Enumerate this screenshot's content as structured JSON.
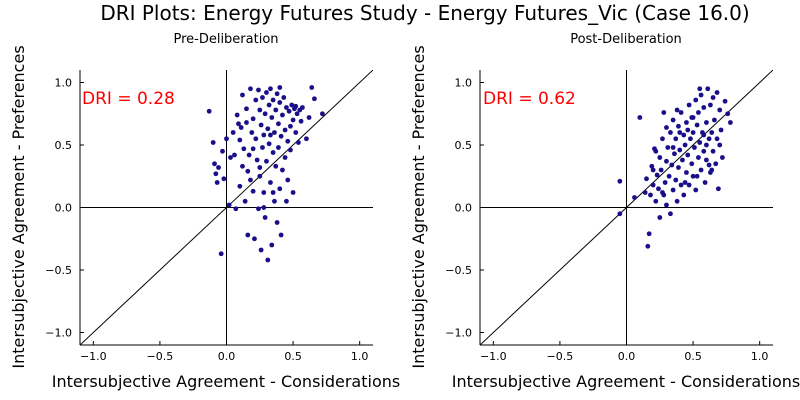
{
  "figure": {
    "title": "DRI Plots: Energy Futures Study - Energy Futures_Vic (Case 16.0)"
  },
  "colors": {
    "point": "#1a0f8a",
    "annotation": "#ff0000",
    "axis": "#000000"
  },
  "chart_data": [
    {
      "type": "scatter",
      "title": "Pre-Deliberation",
      "xlabel": "Intersubjective Agreement - Considerations",
      "ylabel": "Intersubjective Agreement - Preferences",
      "xlim": [
        -1.1,
        1.1
      ],
      "ylim": [
        -1.1,
        1.1
      ],
      "xticks": [
        "−1.0",
        "−0.5",
        "0.0",
        "0.5",
        "1.0"
      ],
      "yticks": [
        "−1.0",
        "−0.5",
        "0.0",
        "0.5",
        "1.0"
      ],
      "grid": false,
      "reference_lines": [
        "x=0",
        "y=0",
        "y=x"
      ],
      "annotation": "DRI = 0.28",
      "points": [
        [
          -0.13,
          0.77
        ],
        [
          -0.1,
          0.52
        ],
        [
          -0.09,
          0.35
        ],
        [
          -0.08,
          0.27
        ],
        [
          -0.07,
          0.2
        ],
        [
          -0.06,
          0.32
        ],
        [
          -0.04,
          -0.37
        ],
        [
          -0.03,
          0.45
        ],
        [
          -0.02,
          0.23
        ],
        [
          0.0,
          0.55
        ],
        [
          0.02,
          0.02
        ],
        [
          0.03,
          0.4
        ],
        [
          0.05,
          0.6
        ],
        [
          0.06,
          0.42
        ],
        [
          0.07,
          -0.01
        ],
        [
          0.08,
          0.74
        ],
        [
          0.09,
          0.67
        ],
        [
          0.1,
          0.54
        ],
        [
          0.1,
          0.17
        ],
        [
          0.11,
          0.64
        ],
        [
          0.12,
          0.9
        ],
        [
          0.13,
          0.47
        ],
        [
          0.14,
          0.05
        ],
        [
          0.15,
          0.68
        ],
        [
          0.15,
          0.79
        ],
        [
          0.16,
          0.29
        ],
        [
          0.16,
          -0.22
        ],
        [
          0.17,
          0.42
        ],
        [
          0.18,
          0.95
        ],
        [
          0.19,
          0.6
        ],
        [
          0.2,
          0.13
        ],
        [
          0.2,
          0.71
        ],
        [
          0.21,
          -0.25
        ],
        [
          0.22,
          0.86
        ],
        [
          0.22,
          0.55
        ],
        [
          0.23,
          0.38
        ],
        [
          0.24,
          -0.01
        ],
        [
          0.24,
          0.94
        ],
        [
          0.25,
          0.78
        ],
        [
          0.25,
          0.25
        ],
        [
          0.26,
          0.66
        ],
        [
          0.26,
          -0.34
        ],
        [
          0.27,
          0.48
        ],
        [
          0.27,
          0.88
        ],
        [
          0.28,
          0.12
        ],
        [
          0.28,
          0.58
        ],
        [
          0.29,
          0.75
        ],
        [
          0.29,
          -0.08
        ],
        [
          0.3,
          0.92
        ],
        [
          0.3,
          0.37
        ],
        [
          0.31,
          0.63
        ],
        [
          0.31,
          -0.42
        ],
        [
          0.32,
          0.82
        ],
        [
          0.32,
          0.51
        ],
        [
          0.33,
          0.2
        ],
        [
          0.33,
          0.95
        ],
        [
          0.34,
          0.72
        ],
        [
          0.34,
          -0.3
        ],
        [
          0.35,
          0.44
        ],
        [
          0.35,
          0.86
        ],
        [
          0.36,
          0.6
        ],
        [
          0.36,
          0.05
        ],
        [
          0.37,
          0.78
        ],
        [
          0.37,
          0.33
        ],
        [
          0.38,
          0.91
        ],
        [
          0.38,
          -0.12
        ],
        [
          0.39,
          0.67
        ],
        [
          0.39,
          0.48
        ],
        [
          0.4,
          0.84
        ],
        [
          0.4,
          0.15
        ],
        [
          0.41,
          0.57
        ],
        [
          0.41,
          -0.22
        ],
        [
          0.42,
          0.74
        ],
        [
          0.42,
          0.3
        ],
        [
          0.43,
          0.88
        ],
        [
          0.44,
          0.62
        ],
        [
          0.44,
          0.4
        ],
        [
          0.45,
          0.8
        ],
        [
          0.46,
          0.53
        ],
        [
          0.46,
          0.22
        ],
        [
          0.47,
          0.77
        ],
        [
          0.48,
          0.65
        ],
        [
          0.48,
          0.46
        ],
        [
          0.49,
          0.82
        ],
        [
          0.5,
          0.7
        ],
        [
          0.5,
          0.12
        ],
        [
          0.51,
          0.79
        ],
        [
          0.52,
          0.6
        ],
        [
          0.52,
          0.81
        ],
        [
          0.53,
          0.75
        ],
        [
          0.54,
          0.52
        ],
        [
          0.55,
          0.78
        ],
        [
          0.56,
          0.69
        ],
        [
          0.57,
          0.8
        ],
        [
          0.6,
          0.55
        ],
        [
          0.62,
          0.72
        ],
        [
          0.64,
          0.96
        ],
        [
          0.66,
          0.87
        ],
        [
          0.72,
          0.75
        ],
        [
          0.35,
          0.12
        ],
        [
          0.2,
          0.47
        ],
        [
          0.12,
          0.33
        ],
        [
          0.45,
          0.05
        ],
        [
          0.28,
          0.0
        ],
        [
          0.33,
          0.58
        ],
        [
          0.4,
          0.96
        ],
        [
          0.25,
          0.32
        ],
        [
          0.18,
          0.22
        ]
      ]
    },
    {
      "type": "scatter",
      "title": "Post-Deliberation",
      "xlabel": "Intersubjective Agreement - Considerations",
      "ylabel": "Intersubjective Agreement - Preferences",
      "xlim": [
        -1.1,
        1.1
      ],
      "ylim": [
        -1.1,
        1.1
      ],
      "xticks": [
        "−1.0",
        "−0.5",
        "0.0",
        "0.5",
        "1.0"
      ],
      "yticks": [
        "−1.0",
        "−0.5",
        "0.0",
        "0.5",
        "1.0"
      ],
      "grid": false,
      "reference_lines": [
        "x=0",
        "y=0",
        "y=x"
      ],
      "annotation": "DRI = 0.62",
      "points": [
        [
          -0.05,
          0.21
        ],
        [
          -0.05,
          -0.05
        ],
        [
          0.06,
          0.08
        ],
        [
          0.1,
          0.72
        ],
        [
          0.14,
          0.12
        ],
        [
          0.15,
          0.23
        ],
        [
          0.16,
          -0.31
        ],
        [
          0.17,
          -0.21
        ],
        [
          0.18,
          0.1
        ],
        [
          0.19,
          0.33
        ],
        [
          0.2,
          0.18
        ],
        [
          0.21,
          0.47
        ],
        [
          0.22,
          0.05
        ],
        [
          0.23,
          0.26
        ],
        [
          0.24,
          0.15
        ],
        [
          0.25,
          0.4
        ],
        [
          0.25,
          -0.08
        ],
        [
          0.26,
          0.3
        ],
        [
          0.27,
          0.55
        ],
        [
          0.28,
          0.1
        ],
        [
          0.28,
          0.76
        ],
        [
          0.29,
          0.2
        ],
        [
          0.3,
          0.37
        ],
        [
          0.3,
          0.02
        ],
        [
          0.31,
          0.48
        ],
        [
          0.32,
          0.25
        ],
        [
          0.33,
          0.6
        ],
        [
          0.33,
          -0.05
        ],
        [
          0.34,
          0.34
        ],
        [
          0.35,
          0.7
        ],
        [
          0.35,
          0.14
        ],
        [
          0.36,
          0.43
        ],
        [
          0.37,
          0.22
        ],
        [
          0.37,
          0.55
        ],
        [
          0.38,
          0.05
        ],
        [
          0.39,
          0.65
        ],
        [
          0.39,
          0.32
        ],
        [
          0.4,
          0.46
        ],
        [
          0.41,
          0.18
        ],
        [
          0.41,
          0.76
        ],
        [
          0.42,
          0.38
        ],
        [
          0.43,
          0.58
        ],
        [
          0.43,
          0.1
        ],
        [
          0.44,
          0.5
        ],
        [
          0.45,
          0.28
        ],
        [
          0.45,
          0.68
        ],
        [
          0.46,
          0.42
        ],
        [
          0.47,
          0.82
        ],
        [
          0.47,
          0.18
        ],
        [
          0.48,
          0.55
        ],
        [
          0.49,
          0.35
        ],
        [
          0.49,
          0.72
        ],
        [
          0.5,
          0.6
        ],
        [
          0.5,
          0.25
        ],
        [
          0.51,
          0.48
        ],
        [
          0.52,
          0.86
        ],
        [
          0.52,
          0.14
        ],
        [
          0.53,
          0.66
        ],
        [
          0.54,
          0.4
        ],
        [
          0.54,
          0.76
        ],
        [
          0.55,
          0.52
        ],
        [
          0.56,
          0.3
        ],
        [
          0.56,
          0.9
        ],
        [
          0.57,
          0.6
        ],
        [
          0.58,
          0.45
        ],
        [
          0.58,
          0.8
        ],
        [
          0.59,
          0.2
        ],
        [
          0.6,
          0.68
        ],
        [
          0.6,
          0.38
        ],
        [
          0.61,
          0.95
        ],
        [
          0.62,
          0.55
        ],
        [
          0.63,
          0.28
        ],
        [
          0.63,
          0.82
        ],
        [
          0.64,
          0.6
        ],
        [
          0.65,
          0.45
        ],
        [
          0.65,
          0.88
        ],
        [
          0.66,
          0.7
        ],
        [
          0.67,
          0.35
        ],
        [
          0.68,
          0.92
        ],
        [
          0.68,
          0.55
        ],
        [
          0.69,
          0.15
        ],
        [
          0.7,
          0.78
        ],
        [
          0.71,
          0.62
        ],
        [
          0.72,
          0.4
        ],
        [
          0.74,
          0.85
        ],
        [
          0.76,
          0.75
        ],
        [
          0.78,
          0.68
        ],
        [
          0.4,
          0.6
        ],
        [
          0.3,
          0.64
        ],
        [
          0.22,
          0.45
        ],
        [
          0.55,
          0.95
        ],
        [
          0.62,
          0.34
        ],
        [
          0.5,
          0.72
        ],
        [
          0.44,
          0.2
        ],
        [
          0.35,
          0.48
        ],
        [
          0.58,
          0.58
        ],
        [
          0.2,
          0.3
        ],
        [
          0.27,
          0.12
        ],
        [
          0.6,
          0.5
        ],
        [
          0.64,
          0.3
        ],
        [
          0.38,
          0.78
        ],
        [
          0.46,
          0.62
        ],
        [
          0.53,
          0.25
        ],
        [
          0.7,
          0.5
        ]
      ]
    }
  ]
}
